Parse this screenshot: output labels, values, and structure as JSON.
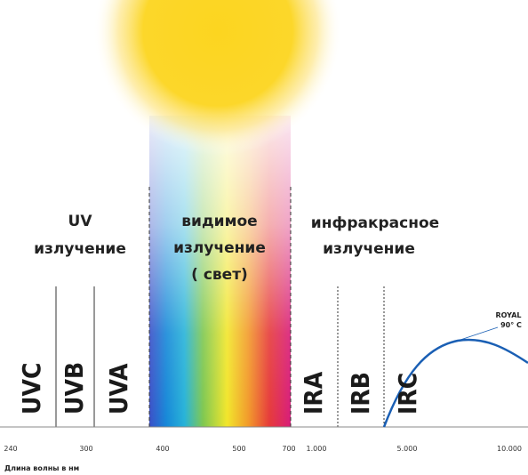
{
  "headings": {
    "uv": [
      "UV",
      "излучение"
    ],
    "visible": [
      "видимое",
      "излучение",
      "( свет)"
    ],
    "infrared": [
      "инфракрасное",
      "излучение"
    ]
  },
  "bands": [
    "UVC",
    "UVB",
    "UVA",
    "IRA",
    "IRB",
    "IRC"
  ],
  "axis": {
    "ticks": [
      "240",
      "300",
      "400",
      "500",
      "700",
      "1.000",
      "5.000",
      "10.000"
    ],
    "label": "Длина волны в нм"
  },
  "curve_label": [
    "ROYAL",
    "90° C"
  ]
}
